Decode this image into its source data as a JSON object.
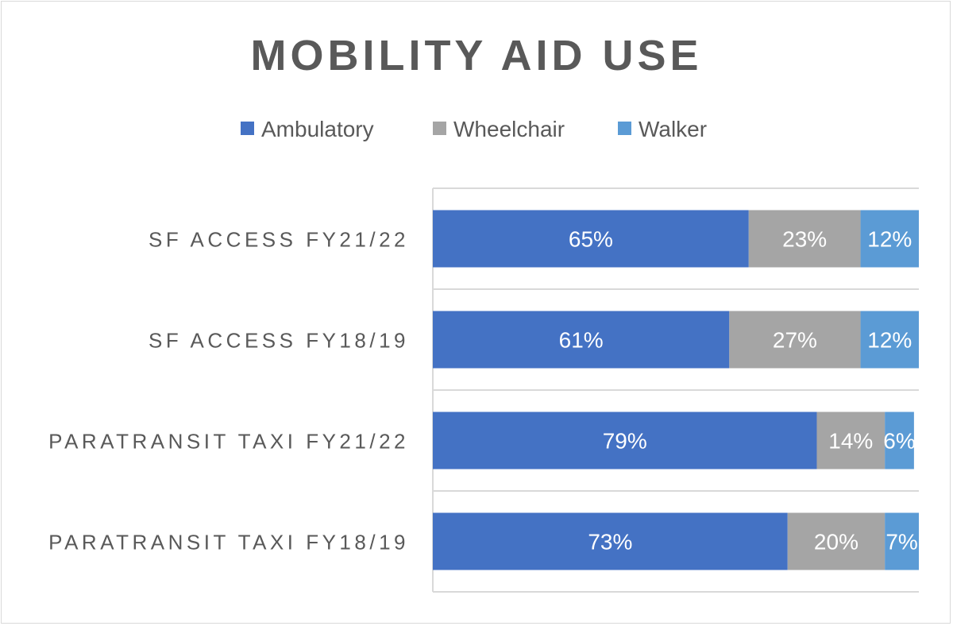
{
  "chart_data": {
    "type": "bar",
    "orientation": "horizontal",
    "stacked": true,
    "title": "MOBILITY AID USE",
    "categories": [
      "SF ACCESS FY21/22",
      "SF ACCESS FY18/19",
      "PARATRANSIT TAXI FY21/22",
      "PARATRANSIT TAXI FY18/19"
    ],
    "series": [
      {
        "name": "Ambulatory",
        "color": "#4472c4",
        "values": [
          65,
          61,
          79,
          73
        ]
      },
      {
        "name": "Wheelchair",
        "color": "#a5a5a5",
        "values": [
          23,
          27,
          14,
          20
        ]
      },
      {
        "name": "Walker",
        "color": "#5b9bd5",
        "values": [
          12,
          12,
          6,
          7
        ]
      }
    ],
    "value_format": "percent",
    "xlim": [
      0,
      100
    ],
    "legend": "top",
    "grid": "horizontal separators between categories",
    "data_labels": true
  }
}
